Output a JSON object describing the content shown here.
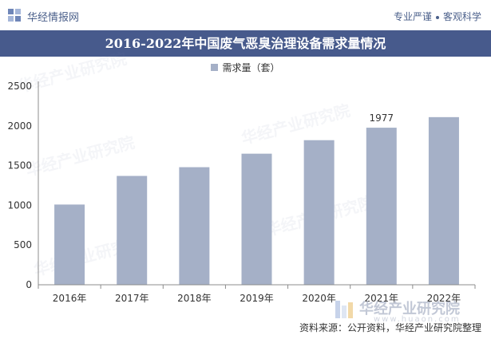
{
  "header": {
    "site_name": "华经情报网",
    "slogan_left": "专业严谨",
    "slogan_right": "客观科学"
  },
  "watermark": {
    "brand": "华经产业研究院",
    "url": "www.huaon.com"
  },
  "footer": {
    "source_text": "资料来源：公开资料，华经产业研究院整理"
  },
  "colors": {
    "accent": "#475a8c",
    "bar": "#a5b0c7",
    "axis": "#8c8c8c"
  },
  "chart_data": {
    "type": "bar",
    "title": "2016-2022年中国废气恶臭治理设备需求量情况",
    "series": [
      {
        "name": "需求量（套）",
        "values": [
          1010,
          1370,
          1480,
          1650,
          1820,
          1977,
          2110
        ]
      }
    ],
    "categories": [
      "2016年",
      "2017年",
      "2018年",
      "2019年",
      "2020年",
      "2021年",
      "2022年"
    ],
    "ylim": [
      0,
      2500
    ],
    "yticks": [
      0,
      500,
      1000,
      1500,
      2000,
      2500
    ],
    "data_labels": [
      {
        "category": "2021年",
        "value": "1977"
      }
    ],
    "grid": false,
    "legend_position": "top-center"
  }
}
